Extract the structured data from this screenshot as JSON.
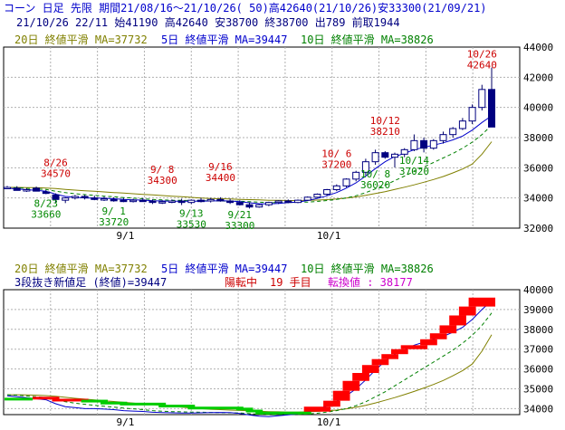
{
  "header": {
    "line1": "コーン 日足 先限 期間21/08/16～21/10/26( 50)高42640(21/10/26)安33300(21/09/21)",
    "line2": "21/10/26 22/11 始41190 高42640 安38700 終38700 出789 前取1944"
  },
  "colors": {
    "ma20": "#808000",
    "ma5": "#0000cc",
    "ma10": "#008000",
    "annotation_high": "#cc0000",
    "annotation_low": "#008800",
    "three_line_break_up": "#ff0000",
    "three_line_break_down": "#00cc00",
    "grid": "#b0b0b0"
  },
  "chart_data": [
    {
      "type": "candlestick",
      "legend": {
        "ma20": "20日 終値平滑 MA=37732",
        "ma5": "5日 終値平滑 MA=39447",
        "ma10": "10日 終値平滑 MA=38826"
      },
      "yticks": [
        32000,
        34000,
        36000,
        38000,
        40000,
        42000,
        44000
      ],
      "ylim": [
        32000,
        44000
      ],
      "xticks": [
        {
          "label": "9/1",
          "index": 12
        },
        {
          "label": "10/1",
          "index": 33
        }
      ],
      "candles": [
        {
          "o": 34700,
          "h": 34800,
          "l": 34600,
          "c": 34700
        },
        {
          "o": 34650,
          "h": 34780,
          "l": 34500,
          "c": 34500
        },
        {
          "o": 34550,
          "h": 34650,
          "l": 34400,
          "c": 34550
        },
        {
          "o": 34650,
          "h": 34750,
          "l": 34450,
          "c": 34450
        },
        {
          "o": 34400,
          "h": 34520,
          "l": 34250,
          "c": 34300
        },
        {
          "o": 34200,
          "h": 34300,
          "l": 33700,
          "c": 33900
        },
        {
          "o": 33850,
          "h": 34050,
          "l": 33660,
          "c": 34000
        },
        {
          "o": 34000,
          "h": 34200,
          "l": 33900,
          "c": 34100
        },
        {
          "o": 34100,
          "h": 34200,
          "l": 33900,
          "c": 34050
        },
        {
          "o": 34000,
          "h": 34150,
          "l": 33850,
          "c": 33900
        },
        {
          "o": 33950,
          "h": 34100,
          "l": 33800,
          "c": 33950
        },
        {
          "o": 33900,
          "h": 34050,
          "l": 33750,
          "c": 33850
        },
        {
          "o": 33850,
          "h": 34000,
          "l": 33720,
          "c": 33800
        },
        {
          "o": 33800,
          "h": 33950,
          "l": 33700,
          "c": 33850
        },
        {
          "o": 33850,
          "h": 34000,
          "l": 33750,
          "c": 33800
        },
        {
          "o": 33800,
          "h": 33900,
          "l": 33600,
          "c": 33700
        },
        {
          "o": 33700,
          "h": 33850,
          "l": 33600,
          "c": 33750
        },
        {
          "o": 33750,
          "h": 33900,
          "l": 33650,
          "c": 33800
        },
        {
          "o": 33800,
          "h": 33950,
          "l": 33530,
          "c": 33700
        },
        {
          "o": 33700,
          "h": 33900,
          "l": 33600,
          "c": 33850
        },
        {
          "o": 33850,
          "h": 34000,
          "l": 33700,
          "c": 33800
        },
        {
          "o": 33800,
          "h": 34000,
          "l": 33700,
          "c": 33900
        },
        {
          "o": 33900,
          "h": 34050,
          "l": 33750,
          "c": 33800
        },
        {
          "o": 33800,
          "h": 33950,
          "l": 33600,
          "c": 33700
        },
        {
          "o": 33700,
          "h": 33850,
          "l": 33500,
          "c": 33550
        },
        {
          "o": 33550,
          "h": 33700,
          "l": 33300,
          "c": 33400
        },
        {
          "o": 33400,
          "h": 33600,
          "l": 33350,
          "c": 33550
        },
        {
          "o": 33550,
          "h": 33750,
          "l": 33450,
          "c": 33700
        },
        {
          "o": 33700,
          "h": 33850,
          "l": 33600,
          "c": 33800
        },
        {
          "o": 33800,
          "h": 33900,
          "l": 33650,
          "c": 33700
        },
        {
          "o": 33700,
          "h": 33900,
          "l": 33650,
          "c": 33850
        },
        {
          "o": 33850,
          "h": 34100,
          "l": 33800,
          "c": 34050
        },
        {
          "o": 34050,
          "h": 34300,
          "l": 34000,
          "c": 34250
        },
        {
          "o": 34250,
          "h": 34600,
          "l": 34150,
          "c": 34550
        },
        {
          "o": 34550,
          "h": 34900,
          "l": 34450,
          "c": 34800
        },
        {
          "o": 34800,
          "h": 35300,
          "l": 34700,
          "c": 35250
        },
        {
          "o": 35250,
          "h": 35800,
          "l": 35100,
          "c": 35700
        },
        {
          "o": 35700,
          "h": 36600,
          "l": 35500,
          "c": 36400
        },
        {
          "o": 36400,
          "h": 37200,
          "l": 36200,
          "c": 37000
        },
        {
          "o": 37000,
          "h": 37100,
          "l": 36600,
          "c": 36700
        },
        {
          "o": 36700,
          "h": 37000,
          "l": 36020,
          "c": 36900
        },
        {
          "o": 36900,
          "h": 37300,
          "l": 36700,
          "c": 37200
        },
        {
          "o": 37200,
          "h": 38210,
          "l": 37100,
          "c": 37800
        },
        {
          "o": 37800,
          "h": 38000,
          "l": 37020,
          "c": 37300
        },
        {
          "o": 37300,
          "h": 37900,
          "l": 37200,
          "c": 37800
        },
        {
          "o": 37800,
          "h": 38400,
          "l": 37600,
          "c": 38200
        },
        {
          "o": 38200,
          "h": 38700,
          "l": 38000,
          "c": 38600
        },
        {
          "o": 38600,
          "h": 39300,
          "l": 38500,
          "c": 39100
        },
        {
          "o": 39100,
          "h": 40200,
          "l": 38900,
          "c": 40000
        },
        {
          "o": 40000,
          "h": 41500,
          "l": 39800,
          "c": 41190
        },
        {
          "o": 41190,
          "h": 42640,
          "l": 38700,
          "c": 38700
        }
      ],
      "ma5": [
        34650,
        34600,
        34550,
        34500,
        34450,
        34250,
        34100,
        34050,
        34000,
        34000,
        33980,
        33950,
        33900,
        33880,
        33860,
        33820,
        33800,
        33790,
        33780,
        33780,
        33790,
        33800,
        33810,
        33800,
        33760,
        33680,
        33620,
        33600,
        33640,
        33690,
        33730,
        33830,
        33970,
        34140,
        34360,
        34650,
        35000,
        35450,
        35950,
        36400,
        36750,
        36950,
        37200,
        37350,
        37500,
        37650,
        37850,
        38100,
        38500,
        39000,
        39447
      ],
      "ma10": [
        34700,
        34680,
        34640,
        34600,
        34560,
        34450,
        34350,
        34280,
        34220,
        34170,
        34120,
        34080,
        34030,
        33990,
        33950,
        33900,
        33870,
        33850,
        33840,
        33830,
        33820,
        33810,
        33800,
        33790,
        33780,
        33750,
        33720,
        33700,
        33690,
        33700,
        33710,
        33730,
        33770,
        33830,
        33900,
        34000,
        34150,
        34350,
        34600,
        34850,
        35150,
        35450,
        35750,
        36050,
        36350,
        36650,
        36950,
        37300,
        37700,
        38200,
        38826
      ],
      "ma20": [
        34700,
        34700,
        34690,
        34680,
        34660,
        34620,
        34570,
        34520,
        34480,
        34440,
        34400,
        34360,
        34320,
        34280,
        34240,
        34200,
        34160,
        34120,
        34080,
        34040,
        34000,
        33970,
        33950,
        33930,
        33910,
        33890,
        33870,
        33850,
        33840,
        33830,
        33830,
        33840,
        33860,
        33890,
        33930,
        33990,
        34070,
        34170,
        34290,
        34420,
        34560,
        34710,
        34870,
        35040,
        35220,
        35420,
        35660,
        35920,
        36250,
        36900,
        37732
      ],
      "annotations": [
        {
          "type": "high",
          "lines": [
            "8/26",
            "34570"
          ],
          "index": 5
        },
        {
          "type": "low",
          "lines": [
            "8/23",
            "33660"
          ],
          "index": 4
        },
        {
          "type": "low",
          "lines": [
            "9/ 1",
            "33720"
          ],
          "index": 11
        },
        {
          "type": "high",
          "lines": [
            "9/ 8",
            "34300"
          ],
          "index": 16
        },
        {
          "type": "low",
          "lines": [
            "9/13",
            "33530"
          ],
          "index": 19
        },
        {
          "type": "high",
          "lines": [
            "9/16",
            "34400"
          ],
          "index": 22
        },
        {
          "type": "low",
          "lines": [
            "9/21",
            "33300"
          ],
          "index": 24
        },
        {
          "type": "high",
          "lines": [
            "10/ 6",
            "37200"
          ],
          "index": 34
        },
        {
          "type": "low",
          "lines": [
            "10/ 8",
            "36020"
          ],
          "index": 38
        },
        {
          "type": "high",
          "lines": [
            "10/12",
            "38210"
          ],
          "index": 39
        },
        {
          "type": "low",
          "lines": [
            "10/14",
            "37020"
          ],
          "index": 42
        },
        {
          "type": "high",
          "lines": [
            "10/26",
            "42640"
          ],
          "index": 49
        }
      ]
    },
    {
      "type": "three_line_break",
      "legend": {
        "ma20": "20日 終値平滑 MA=37732",
        "ma5": "5日 終値平滑 MA=39447",
        "ma10": "10日 終値平滑 MA=38826"
      },
      "status": {
        "prefix": "3段抜き新値足 (終値)=39447",
        "turn": "陽転中",
        "count": "19 手目",
        "switch_label": "転換値 : 38177"
      },
      "yticks": [
        34000,
        35000,
        36000,
        37000,
        38000,
        39000,
        40000
      ],
      "ylim": [
        33700,
        40000
      ],
      "xticks": [
        {
          "label": "9/1",
          "index": 12
        },
        {
          "label": "10/1",
          "index": 33
        }
      ],
      "blocks": [
        {
          "i0": 3,
          "i1": 5,
          "o": 34500,
          "c": 34600,
          "dir": "up"
        },
        {
          "i0": 5,
          "i1": 8,
          "o": 34450,
          "c": 34500,
          "dir": "up"
        },
        {
          "i0": 8,
          "i1": 10,
          "o": 34350,
          "c": 34450,
          "dir": "down"
        },
        {
          "i0": 10,
          "i1": 12,
          "o": 34300,
          "c": 34350,
          "dir": "down"
        },
        {
          "i0": 12,
          "i1": 16,
          "o": 34200,
          "c": 34300,
          "dir": "down"
        },
        {
          "i0": 16,
          "i1": 19,
          "o": 34100,
          "c": 34200,
          "dir": "down"
        },
        {
          "i0": 19,
          "i1": 24,
          "o": 34050,
          "c": 34100,
          "dir": "down"
        },
        {
          "i0": 24,
          "i1": 25,
          "o": 33950,
          "c": 34050,
          "dir": "down"
        },
        {
          "i0": 25,
          "i1": 26,
          "o": 33850,
          "c": 33950,
          "dir": "down"
        },
        {
          "i0": 26,
          "i1": 31,
          "o": 33750,
          "c": 33850,
          "dir": "down"
        },
        {
          "i0": 31,
          "i1": 33,
          "o": 33850,
          "c": 34100,
          "dir": "up"
        },
        {
          "i0": 33,
          "i1": 34,
          "o": 34100,
          "c": 34400,
          "dir": "up"
        },
        {
          "i0": 34,
          "i1": 35,
          "o": 34400,
          "c": 34900,
          "dir": "up"
        },
        {
          "i0": 35,
          "i1": 36,
          "o": 34900,
          "c": 35400,
          "dir": "up"
        },
        {
          "i0": 36,
          "i1": 37,
          "o": 35400,
          "c": 35800,
          "dir": "up"
        },
        {
          "i0": 37,
          "i1": 38,
          "o": 35800,
          "c": 36200,
          "dir": "up"
        },
        {
          "i0": 38,
          "i1": 39,
          "o": 36200,
          "c": 36500,
          "dir": "up"
        },
        {
          "i0": 39,
          "i1": 40,
          "o": 36500,
          "c": 36750,
          "dir": "up"
        },
        {
          "i0": 40,
          "i1": 41,
          "o": 36750,
          "c": 37000,
          "dir": "up"
        },
        {
          "i0": 41,
          "i1": 43,
          "o": 37000,
          "c": 37200,
          "dir": "up"
        },
        {
          "i0": 43,
          "i1": 44,
          "o": 37200,
          "c": 37500,
          "dir": "up"
        },
        {
          "i0": 44,
          "i1": 45,
          "o": 37500,
          "c": 37800,
          "dir": "up"
        },
        {
          "i0": 45,
          "i1": 46,
          "o": 37800,
          "c": 38200,
          "dir": "up"
        },
        {
          "i0": 46,
          "i1": 47,
          "o": 38200,
          "c": 38700,
          "dir": "up"
        },
        {
          "i0": 47,
          "i1": 48,
          "o": 38700,
          "c": 39150,
          "dir": "up"
        },
        {
          "i0": 48,
          "i1": 50,
          "o": 39150,
          "c": 39600,
          "dir": "up"
        }
      ]
    }
  ]
}
